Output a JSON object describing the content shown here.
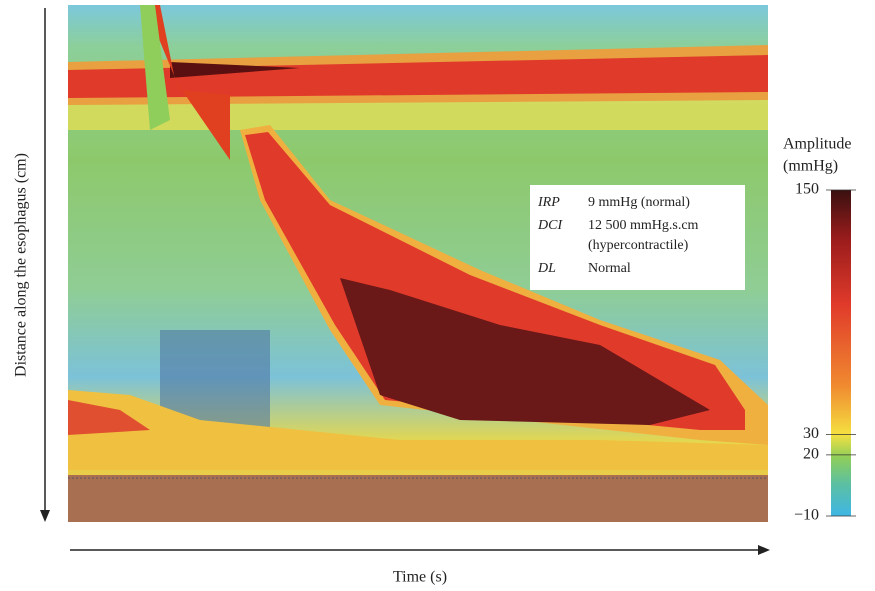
{
  "chart_data": {
    "type": "heatmap",
    "x_label": "Time (s)",
    "y_label": "Distance along the esophagus (cm)",
    "colorbar": {
      "title": [
        "Amplitude",
        "(mmHg)"
      ],
      "clim": [
        -10,
        150
      ],
      "ticks": [
        {
          "value": -10,
          "label": "−10"
        },
        20,
        30,
        150
      ]
    },
    "annotation": [
      {
        "term": "IRP",
        "text": [
          "9 mmHg (normal)"
        ]
      },
      {
        "term": "DCI",
        "text": [
          "12 500 mmHg.s.cm",
          "(hypercontractile)"
        ]
      },
      {
        "term": "DL",
        "text": [
          "Normal"
        ]
      }
    ]
  }
}
